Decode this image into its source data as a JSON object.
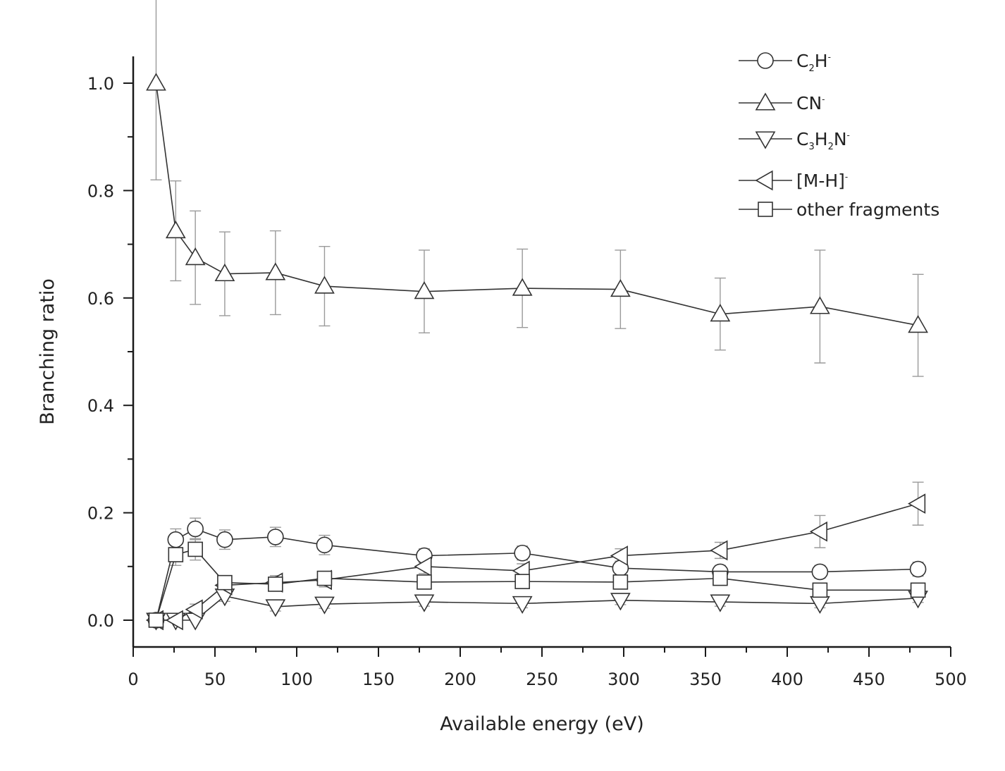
{
  "chart_data": {
    "type": "line",
    "title": "",
    "xlabel": "Available energy (eV)",
    "ylabel": "Branching ratio",
    "xlim": [
      0,
      500
    ],
    "ylim": [
      -0.05,
      1.05
    ],
    "xticks": [
      0,
      50,
      100,
      150,
      200,
      250,
      300,
      350,
      400,
      450,
      500
    ],
    "xtick_labels": [
      "0",
      "50",
      "100",
      "150",
      "200",
      "250",
      "300",
      "350",
      "400",
      "450",
      "500"
    ],
    "yticks": [
      0.0,
      0.2,
      0.4,
      0.6,
      0.8,
      1.0
    ],
    "ytick_labels": [
      "0.0",
      "0.2",
      "0.4",
      "0.6",
      "0.8",
      "1.0"
    ],
    "grid": false,
    "legend_position": "top-right",
    "series": [
      {
        "name": "C2H-",
        "legend": {
          "main": "C",
          "sub": "2",
          "main2": "H",
          "sup": "-"
        },
        "marker": "circle",
        "x": [
          14,
          26,
          38,
          56,
          87,
          117,
          178,
          238,
          298,
          359,
          420,
          480
        ],
        "y": [
          0.0,
          0.15,
          0.17,
          0.15,
          0.155,
          0.14,
          0.12,
          0.125,
          0.097,
          0.09,
          0.09,
          0.095
        ],
        "err": [
          0.0,
          0.02,
          0.02,
          0.018,
          0.018,
          0.018,
          0.013,
          0.013,
          0.013,
          0.012,
          0.012,
          0.013
        ]
      },
      {
        "name": "CN-",
        "legend": {
          "main": "CN",
          "sup": "-"
        },
        "marker": "triangle-up",
        "x": [
          14,
          26,
          38,
          56,
          87,
          117,
          178,
          238,
          298,
          359,
          420,
          480
        ],
        "y": [
          1.0,
          0.725,
          0.675,
          0.645,
          0.647,
          0.622,
          0.612,
          0.618,
          0.616,
          0.57,
          0.584,
          0.549
        ],
        "err": [
          0.18,
          0.093,
          0.087,
          0.078,
          0.078,
          0.074,
          0.077,
          0.073,
          0.073,
          0.067,
          0.105,
          0.095
        ]
      },
      {
        "name": "C3H2N-",
        "legend": {
          "main": "C",
          "sub": "3",
          "main2": "H",
          "sub2": "2",
          "main3": "N",
          "sup": "-"
        },
        "marker": "triangle-down",
        "x": [
          14,
          26,
          38,
          56,
          87,
          117,
          178,
          238,
          298,
          359,
          420,
          480
        ],
        "y": [
          0.0,
          0.0,
          0.0,
          0.045,
          0.025,
          0.03,
          0.034,
          0.031,
          0.037,
          0.034,
          0.031,
          0.041
        ],
        "err": [
          0.0,
          0.0,
          0.0,
          0.01,
          0.008,
          0.008,
          0.008,
          0.008,
          0.008,
          0.008,
          0.008,
          0.008
        ]
      },
      {
        "name": "[M-H]-",
        "legend": {
          "main": "[M-H]",
          "sup": "-"
        },
        "marker": "triangle-left",
        "x": [
          14,
          26,
          38,
          56,
          87,
          117,
          178,
          238,
          298,
          359,
          420,
          480
        ],
        "y": [
          0.0,
          0.0,
          0.02,
          0.065,
          0.07,
          0.075,
          0.1,
          0.092,
          0.12,
          0.13,
          0.165,
          0.217
        ],
        "err": [
          0.0,
          0.0,
          0.01,
          0.013,
          0.013,
          0.013,
          0.013,
          0.013,
          0.013,
          0.015,
          0.03,
          0.04
        ]
      },
      {
        "name": "other fragments",
        "legend": {
          "main": "other fragments"
        },
        "marker": "square",
        "x": [
          14,
          26,
          38,
          56,
          87,
          117,
          178,
          238,
          298,
          359,
          420,
          480
        ],
        "y": [
          0.0,
          0.122,
          0.132,
          0.07,
          0.067,
          0.078,
          0.071,
          0.072,
          0.071,
          0.078,
          0.056,
          0.056
        ],
        "err": [
          0.0,
          0.02,
          0.02,
          0.013,
          0.013,
          0.013,
          0.013,
          0.013,
          0.013,
          0.013,
          0.012,
          0.012
        ]
      }
    ]
  }
}
